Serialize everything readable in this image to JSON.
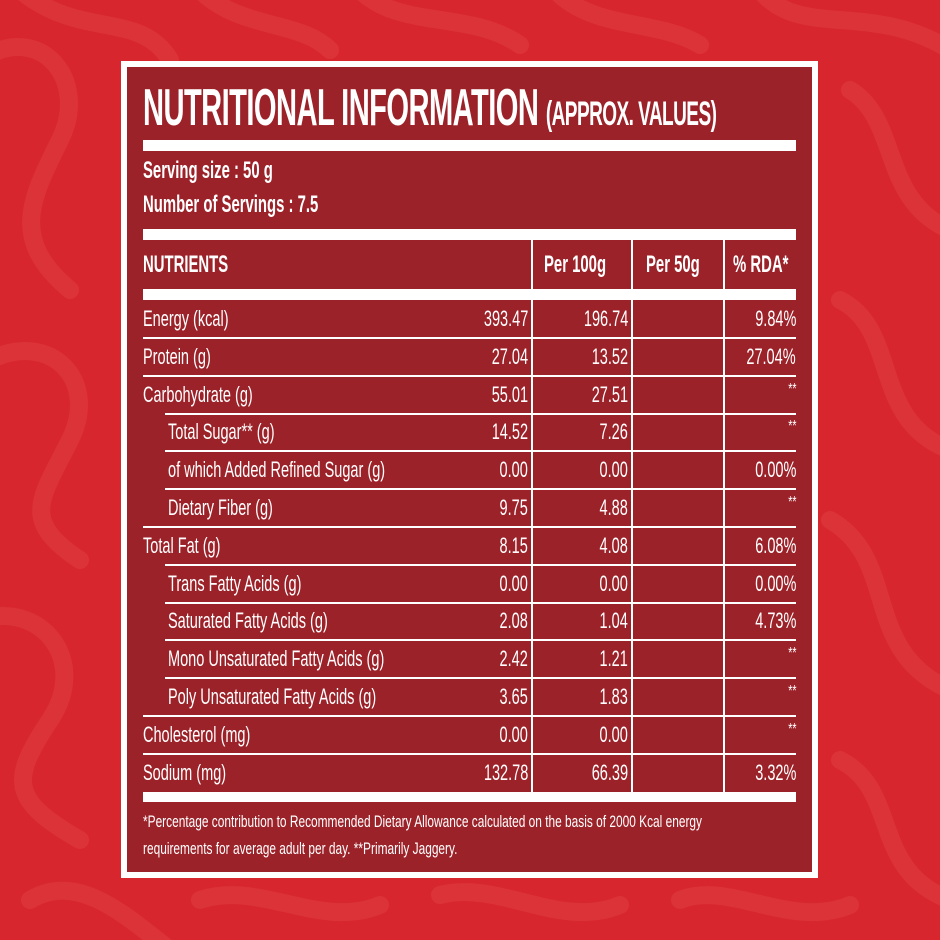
{
  "colors": {
    "background": "#d7262d",
    "background_swirl": "#dc3539",
    "panel": "#9c2229",
    "text": "#ffffff",
    "border": "#ffffff"
  },
  "label": {
    "title": "NUTRITIONAL INFORMATION",
    "title_suffix": "(APPROX. VALUES)",
    "serving_size": "Serving size : 50 g",
    "number_of_servings": "Number of Servings : 7.5"
  },
  "table": {
    "headers": {
      "nutrients": "NUTRIENTS",
      "per_100g": "Per 100g",
      "per_50g": "Per 50g",
      "rda": "% RDA*"
    },
    "rows": [
      {
        "name": "Energy (kcal)",
        "per_100g": "393.47",
        "per_50g": "196.74",
        "rda": "9.84%",
        "indent": false
      },
      {
        "name": "Protein (g)",
        "per_100g": "27.04",
        "per_50g": "13.52",
        "rda": "27.04%",
        "indent": false
      },
      {
        "name": "Carbohydrate (g)",
        "per_100g": "55.01",
        "per_50g": "27.51",
        "rda": "**",
        "indent": false
      },
      {
        "name": "Total Sugar** (g)",
        "per_100g": "14.52",
        "per_50g": "7.26",
        "rda": "**",
        "indent": true
      },
      {
        "name": "of which Added Refined Sugar (g)",
        "per_100g": "0.00",
        "per_50g": "0.00",
        "rda": "0.00%",
        "indent": true
      },
      {
        "name": "Dietary Fiber (g)",
        "per_100g": "9.75",
        "per_50g": "4.88",
        "rda": "**",
        "indent": true
      },
      {
        "name": "Total Fat (g)",
        "per_100g": "8.15",
        "per_50g": "4.08",
        "rda": "6.08%",
        "indent": false
      },
      {
        "name": "Trans Fatty Acids (g)",
        "per_100g": "0.00",
        "per_50g": "0.00",
        "rda": "0.00%",
        "indent": true
      },
      {
        "name": "Saturated Fatty Acids (g)",
        "per_100g": "2.08",
        "per_50g": "1.04",
        "rda": "4.73%",
        "indent": true
      },
      {
        "name": "Mono Unsaturated Fatty Acids (g)",
        "per_100g": "2.42",
        "per_50g": "1.21",
        "rda": "**",
        "indent": true
      },
      {
        "name": "Poly Unsaturated Fatty Acids (g)",
        "per_100g": "3.65",
        "per_50g": "1.83",
        "rda": "**",
        "indent": true
      },
      {
        "name": "Cholesterol (mg)",
        "per_100g": "0.00",
        "per_50g": "0.00",
        "rda": "**",
        "indent": false
      },
      {
        "name": "Sodium (mg)",
        "per_100g": "132.78",
        "per_50g": "66.39",
        "rda": "3.32%",
        "indent": false
      }
    ]
  },
  "footnote": {
    "line1": "*Percentage contribution to Recommended Dietary Allowance calculated on the basis of 2000 Kcal energy",
    "line2": "requirements for average adult per day. **Primarily Jaggery."
  }
}
